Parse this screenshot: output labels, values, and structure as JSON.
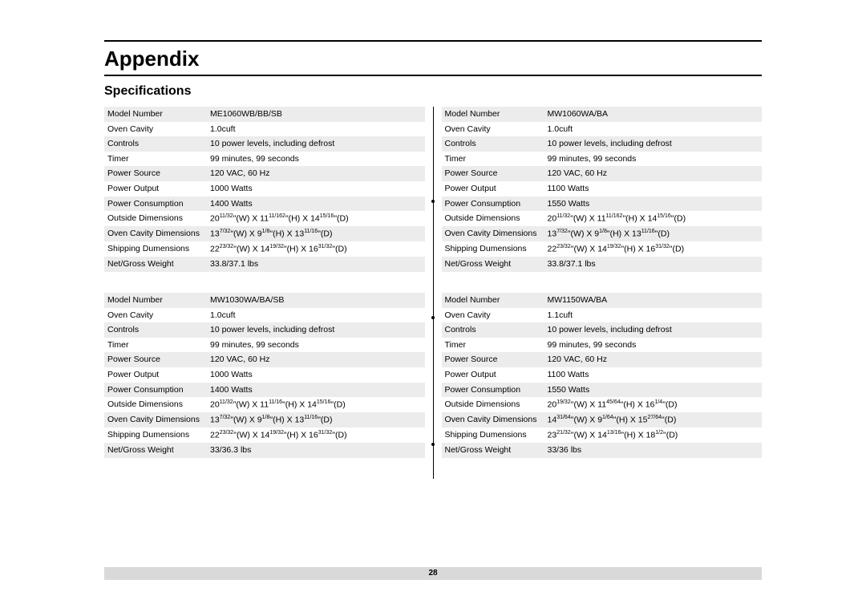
{
  "page": {
    "title": "Appendix",
    "subtitle": "Specifications",
    "number": "28"
  },
  "labels": {
    "model": "Model Number",
    "cavity": "Oven Cavity",
    "controls": "Controls",
    "timer": "Timer",
    "psource": "Power Source",
    "poutput": "Power Output",
    "pcons": "Power Consumption",
    "odim": "Outside Dimensions",
    "cdim": "Oven Cavity Dimensions",
    "sdim": "Shipping Dumensions",
    "weight": "Net/Gross Weight"
  },
  "common": {
    "controls": "10 power levels, including defrost",
    "timer": "99 minutes, 99 seconds",
    "psource": "120 VAC, 60 Hz"
  },
  "specs": {
    "a": {
      "model": "ME1060WB/BB/SB",
      "cavity": "1.0cuft",
      "poutput": "1000 Watts",
      "pcons": "1400 Watts",
      "odim": {
        "w": "20",
        "ws": "11/32",
        "h": "11",
        "hs": "11/162",
        "d": "14",
        "ds": "15/16"
      },
      "cdim": {
        "w": "13",
        "ws": "7/32",
        "h": "9",
        "hs": "1/8",
        "d": "13",
        "ds": "11/16"
      },
      "sdim": {
        "w": "22",
        "ws": "23/32",
        "h": "14",
        "hs": "19/32",
        "d": "16",
        "ds": "31/32"
      },
      "weight": "33.8/37.1 lbs"
    },
    "b": {
      "model": "MW1030WA/BA/SB",
      "cavity": "1.0cuft",
      "poutput": "1000 Watts",
      "pcons": "1400 Watts",
      "odim": {
        "w": "20",
        "ws": "11/32",
        "h": "11",
        "hs": "11/16",
        "d": "14",
        "ds": "15/16"
      },
      "cdim": {
        "w": "13",
        "ws": "7/32",
        "h": "9",
        "hs": "1/8",
        "d": "13",
        "ds": "11/16"
      },
      "sdim": {
        "w": "22",
        "ws": "23/32",
        "h": "14",
        "hs": "19/32",
        "d": "16",
        "ds": "31/32"
      },
      "weight": "33/36.3 lbs"
    },
    "c": {
      "model": "MW1060WA/BA",
      "cavity": "1.0cuft",
      "poutput": "1100 Watts",
      "pcons": "1550 Watts",
      "odim": {
        "w": "20",
        "ws": "11/32",
        "h": "11",
        "hs": "11/162",
        "d": "14",
        "ds": "15/16"
      },
      "cdim": {
        "w": "13",
        "ws": "7/32",
        "h": "9",
        "hs": "1/8",
        "d": "13",
        "ds": "11/16"
      },
      "sdim": {
        "w": "22",
        "ws": "23/32",
        "h": "14",
        "hs": "19/32",
        "d": "16",
        "ds": "31/32"
      },
      "weight": "33.8/37.1 lbs"
    },
    "d": {
      "model": "MW1150WA/BA",
      "cavity": "1.1cuft",
      "poutput": "1100 Watts",
      "pcons": "1550 Watts",
      "odim": {
        "w": "20",
        "ws": "19/32",
        "h": "11",
        "hs": "45/64",
        "d": "16",
        "ds": "1/4"
      },
      "cdim": {
        "w": "14",
        "ws": "31/64",
        "h": "9",
        "hs": "1/64",
        "d": "15",
        "ds": "27/64"
      },
      "sdim": {
        "w": "23",
        "ws": "21/32",
        "h": "14",
        "hs": "13/16",
        "d": "18",
        "ds": "1/2"
      },
      "weight": "33/36 lbs"
    }
  }
}
